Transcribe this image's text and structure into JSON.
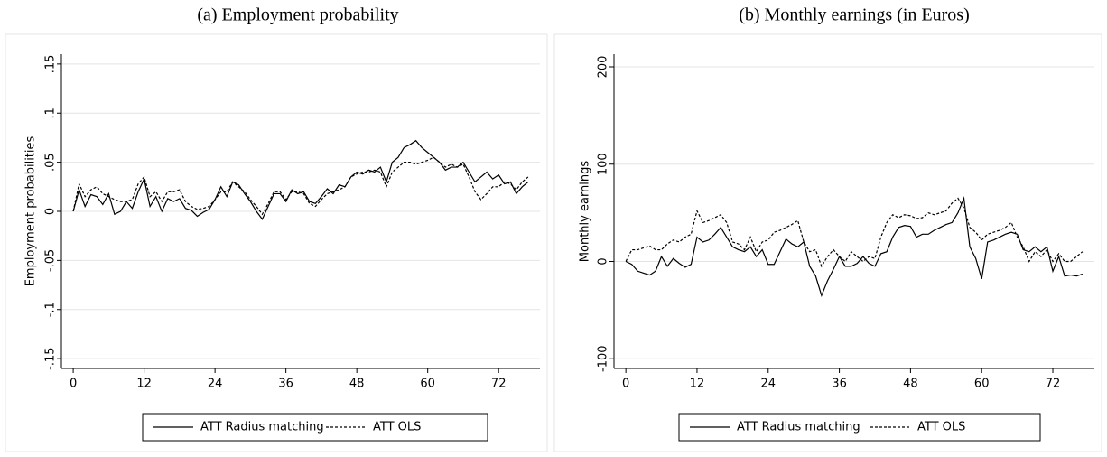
{
  "chart_data": [
    {
      "type": "line",
      "title": "(a) Employment probability",
      "y_label": "Employment probabilities",
      "x": [
        0,
        1,
        2,
        3,
        4,
        5,
        6,
        7,
        8,
        9,
        10,
        11,
        12,
        13,
        14,
        15,
        16,
        17,
        18,
        19,
        20,
        21,
        22,
        23,
        24,
        25,
        26,
        27,
        28,
        29,
        30,
        31,
        32,
        33,
        34,
        35,
        36,
        37,
        38,
        39,
        40,
        41,
        42,
        43,
        44,
        45,
        46,
        47,
        48,
        49,
        50,
        51,
        52,
        53,
        54,
        55,
        56,
        57,
        58,
        59,
        60,
        61,
        62,
        63,
        64,
        65,
        66,
        67,
        68,
        69,
        70,
        71,
        72,
        73,
        74,
        75,
        76,
        77
      ],
      "series": [
        {
          "name": "ATT Radius matching",
          "color": "#000000",
          "style": "solid",
          "values": [
            0,
            0.022,
            0.005,
            0.017,
            0.015,
            0.007,
            0.018,
            -0.003,
            0,
            0.01,
            0.003,
            0.02,
            0.033,
            0.005,
            0.015,
            0,
            0.013,
            0.01,
            0.013,
            0.003,
            0.001,
            -0.005,
            -0.001,
            0.002,
            0.012,
            0.025,
            0.015,
            0.03,
            0.027,
            0.018,
            0.01,
            0,
            -0.008,
            0.005,
            0.018,
            0.018,
            0.01,
            0.022,
            0.018,
            0.02,
            0.01,
            0.008,
            0.015,
            0.023,
            0.018,
            0.027,
            0.025,
            0.035,
            0.04,
            0.038,
            0.042,
            0.04,
            0.045,
            0.03,
            0.05,
            0.055,
            0.065,
            0.068,
            0.072,
            0.065,
            0.06,
            0.055,
            0.05,
            0.042,
            0.045,
            0.045,
            0.05,
            0.04,
            0.03,
            0.035,
            0.04,
            0.033,
            0.037,
            0.028,
            0.03,
            0.018,
            0.025,
            0.03
          ]
        },
        {
          "name": "ATT OLS",
          "color": "#000000",
          "style": "dashed",
          "values": [
            0,
            0.028,
            0.015,
            0.022,
            0.025,
            0.018,
            0.015,
            0.012,
            0.01,
            0.01,
            0.012,
            0.028,
            0.035,
            0.015,
            0.02,
            0.01,
            0.02,
            0.02,
            0.022,
            0.01,
            0.005,
            0.002,
            0.003,
            0.005,
            0.012,
            0.02,
            0.02,
            0.03,
            0.025,
            0.02,
            0.012,
            0.005,
            -0.003,
            0.008,
            0.02,
            0.02,
            0.012,
            0.02,
            0.02,
            0.018,
            0.008,
            0.005,
            0.012,
            0.018,
            0.02,
            0.022,
            0.025,
            0.035,
            0.038,
            0.04,
            0.04,
            0.042,
            0.04,
            0.025,
            0.04,
            0.045,
            0.05,
            0.05,
            0.048,
            0.05,
            0.052,
            0.055,
            0.05,
            0.045,
            0.048,
            0.045,
            0.048,
            0.035,
            0.02,
            0.012,
            0.018,
            0.025,
            0.025,
            0.03,
            0.028,
            0.022,
            0.03,
            0.035
          ]
        }
      ],
      "xlim": [
        -2,
        79
      ],
      "xticks": [
        0,
        12,
        24,
        36,
        48,
        60,
        72
      ],
      "ylim": [
        -0.16,
        0.16
      ],
      "yticks": [
        {
          "value": -0.15,
          "label": "-.15"
        },
        {
          "value": -0.1,
          "label": "-.1"
        },
        {
          "value": -0.05,
          "label": "-.05"
        },
        0,
        {
          "value": 0.05,
          "label": ".05"
        },
        {
          "value": 0.1,
          "label": ".1"
        },
        {
          "value": 0.15,
          "label": ".15"
        }
      ],
      "grid": true
    },
    {
      "type": "line",
      "title": "(b) Monthly earnings (in Euros)",
      "y_label": "Monthly earnings",
      "x": [
        0,
        1,
        2,
        3,
        4,
        5,
        6,
        7,
        8,
        9,
        10,
        11,
        12,
        13,
        14,
        15,
        16,
        17,
        18,
        19,
        20,
        21,
        22,
        23,
        24,
        25,
        26,
        27,
        28,
        29,
        30,
        31,
        32,
        33,
        34,
        35,
        36,
        37,
        38,
        39,
        40,
        41,
        42,
        43,
        44,
        45,
        46,
        47,
        48,
        49,
        50,
        51,
        52,
        53,
        54,
        55,
        56,
        57,
        58,
        59,
        60,
        61,
        62,
        63,
        64,
        65,
        66,
        67,
        68,
        69,
        70,
        71,
        72,
        73,
        74,
        75,
        76,
        77
      ],
      "series": [
        {
          "name": "ATT Radius matching",
          "color": "#000000",
          "style": "solid",
          "values": [
            0,
            -3,
            -10,
            -12,
            -14,
            -10,
            5,
            -5,
            3,
            -2,
            -6,
            -3,
            25,
            20,
            22,
            28,
            35,
            25,
            15,
            12,
            10,
            15,
            5,
            12,
            -3,
            -3,
            10,
            23,
            18,
            15,
            20,
            -5,
            -15,
            -35,
            -20,
            -8,
            5,
            -5,
            -5,
            -2,
            5,
            -2,
            -5,
            8,
            10,
            25,
            35,
            37,
            36,
            25,
            28,
            28,
            32,
            35,
            38,
            40,
            50,
            65,
            15,
            3,
            -18,
            20,
            22,
            25,
            28,
            30,
            28,
            12,
            10,
            15,
            10,
            15,
            -10,
            5,
            -15,
            -14,
            -15,
            -13
          ]
        },
        {
          "name": "ATT OLS",
          "color": "#000000",
          "style": "dashed",
          "values": [
            0,
            12,
            12,
            14,
            16,
            12,
            12,
            18,
            22,
            20,
            25,
            28,
            52,
            40,
            42,
            45,
            48,
            40,
            20,
            18,
            12,
            25,
            10,
            20,
            22,
            30,
            32,
            35,
            38,
            42,
            20,
            10,
            12,
            -5,
            5,
            12,
            5,
            0,
            10,
            5,
            0,
            5,
            3,
            25,
            40,
            48,
            45,
            48,
            47,
            44,
            45,
            50,
            48,
            50,
            52,
            60,
            65,
            55,
            35,
            30,
            22,
            28,
            30,
            32,
            35,
            40,
            25,
            15,
            0,
            10,
            5,
            12,
            0,
            8,
            0,
            0,
            5,
            10
          ]
        }
      ],
      "xlim": [
        -2,
        79
      ],
      "xticks": [
        0,
        12,
        24,
        36,
        48,
        60,
        72
      ],
      "ylim": [
        -110,
        213
      ],
      "yticks": [
        -100,
        0,
        100,
        200
      ],
      "grid": true
    }
  ]
}
